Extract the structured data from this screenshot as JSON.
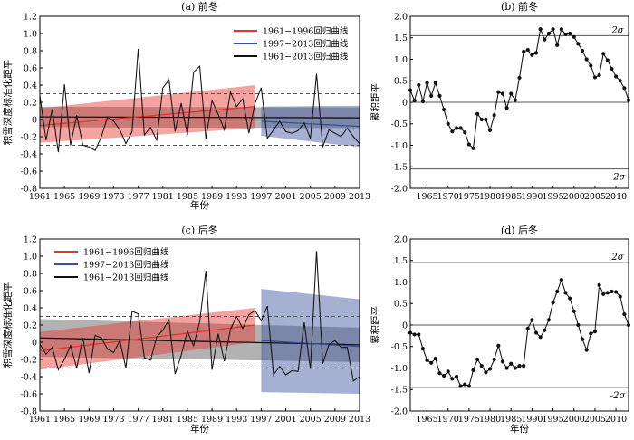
{
  "chart_data": [
    {
      "panel": "(a) 前冬",
      "type": "line",
      "title": "(a) 前冬",
      "xlabel": "年份",
      "ylabel": "积雪深度标准化距平",
      "xlim": [
        1961,
        2013
      ],
      "ylim": [
        -0.8,
        1.2
      ],
      "xticks": [
        "1961",
        "1965",
        "1969",
        "1973",
        "1977",
        "1981",
        "1985",
        "1989",
        "1993",
        "1997",
        "2001",
        "2005",
        "2009",
        "2013"
      ],
      "yticks": [
        "-0.8",
        "-0.6",
        "-0.4",
        "-0.2",
        "0",
        "0.2",
        "0.4",
        "0.6",
        "0.8",
        "1.0",
        "1.2"
      ],
      "dashed_lines": [
        0.3,
        -0.3
      ],
      "legend": [
        {
          "label": "1961−1996回归曲线",
          "color": "#e8322c"
        },
        {
          "label": "1997−2013回归曲线",
          "color": "#3a4f9c"
        },
        {
          "label": "1961−2013回归曲线",
          "color": "#111111"
        }
      ],
      "series": [
        {
          "x": [
            1961,
            1962,
            1963,
            1964,
            1965,
            1966,
            1967,
            1968,
            1969,
            1970,
            1971,
            1972,
            1973,
            1974,
            1975,
            1976,
            1977,
            1978,
            1979,
            1980,
            1981,
            1982,
            1983,
            1984,
            1985,
            1986,
            1987,
            1988,
            1989,
            1990,
            1991,
            1992,
            1993,
            1994,
            1995,
            1996,
            1997,
            1998,
            1999,
            2000,
            2001,
            2002,
            2003,
            2004,
            2005,
            2006,
            2007,
            2008,
            2009,
            2010,
            2011,
            2012,
            2013
          ],
          "values": [
            0.28,
            -0.24,
            0.12,
            -0.38,
            0.41,
            -0.3,
            0.05,
            -0.3,
            -0.32,
            -0.36,
            -0.2,
            0.03,
            -0.02,
            -0.12,
            -0.28,
            -0.14,
            0.82,
            -0.18,
            -0.09,
            -0.24,
            0.37,
            0.46,
            -0.14,
            0.19,
            -0.18,
            0.55,
            0.62,
            -0.22,
            0.22,
            0.06,
            -0.12,
            0.32,
            0.15,
            0.24,
            -0.16,
            0.19,
            0.37,
            -0.22,
            -0.12,
            -0.02,
            -0.14,
            -0.16,
            -0.13,
            -0.04,
            -0.22,
            0.53,
            -0.32,
            -0.12,
            -0.16,
            -0.2,
            -0.1,
            -0.2,
            -0.28
          ]
        }
      ],
      "regressions": [
        {
          "range": [
            1961,
            1996
          ],
          "start": -0.07,
          "end": 0.15,
          "band_start": 0.2,
          "band_end": 0.25,
          "color": "#e8322c"
        },
        {
          "range": [
            1997,
            2013
          ],
          "start": -0.02,
          "end": -0.08,
          "band_start": 0.17,
          "band_end": 0.24,
          "color": "#3a4f9c"
        },
        {
          "range": [
            1961,
            2013
          ],
          "start": 0.03,
          "end": 0.02,
          "band_start": 0.12,
          "band_end": 0.12,
          "color": "#111111"
        }
      ]
    },
    {
      "panel": "(b) 前冬",
      "type": "line",
      "title": "(b) 前冬",
      "xlabel": "",
      "ylabel": "累积距平",
      "xlim": [
        1961,
        2013
      ],
      "ylim": [
        -2.0,
        2.0
      ],
      "xticks": [
        "1965",
        "1970",
        "1975",
        "1980",
        "1985",
        "1990",
        "1995",
        "2000",
        "2005",
        "2010"
      ],
      "yticks": [
        "-2.0",
        "-1.5",
        "-1.0",
        "-0.5",
        "0",
        "0.5",
        "1.0",
        "1.5",
        "2.0"
      ],
      "sigma_lines": [
        {
          "value": 1.55,
          "label": "2σ"
        },
        {
          "value": -1.55,
          "label": "-2σ"
        }
      ],
      "zero_line": true,
      "series": [
        {
          "x": [
            1961,
            1962,
            1963,
            1964,
            1965,
            1966,
            1967,
            1968,
            1969,
            1970,
            1971,
            1972,
            1973,
            1974,
            1975,
            1976,
            1977,
            1978,
            1979,
            1980,
            1981,
            1982,
            1983,
            1984,
            1985,
            1986,
            1987,
            1988,
            1989,
            1990,
            1991,
            1992,
            1993,
            1994,
            1995,
            1996,
            1997,
            1998,
            1999,
            2000,
            2001,
            2002,
            2003,
            2004,
            2005,
            2006,
            2007,
            2008,
            2009,
            2010,
            2011,
            2012,
            2013
          ],
          "values": [
            0.28,
            0.04,
            0.4,
            0.02,
            0.45,
            0.15,
            0.45,
            0.15,
            -0.17,
            -0.5,
            -0.68,
            -0.6,
            -0.6,
            -0.7,
            -0.98,
            -1.07,
            -0.27,
            -0.4,
            -0.4,
            -0.65,
            -0.3,
            0.24,
            0.2,
            -0.13,
            0.2,
            0.05,
            0.57,
            1.18,
            1.22,
            1.1,
            1.15,
            1.7,
            1.46,
            1.6,
            1.7,
            1.33,
            1.7,
            1.58,
            1.6,
            1.52,
            1.36,
            1.2,
            1.0,
            0.85,
            0.58,
            0.63,
            1.13,
            0.98,
            0.78,
            0.6,
            0.5,
            0.33,
            0.05
          ]
        }
      ]
    },
    {
      "panel": "(c) 后冬",
      "type": "line",
      "title": "(c) 后冬",
      "xlabel": "年份",
      "ylabel": "积雪深度标准化距平",
      "xlim": [
        1961,
        2013
      ],
      "ylim": [
        -0.8,
        1.2
      ],
      "xticks": [
        "1961",
        "1965",
        "1969",
        "1973",
        "1977",
        "1981",
        "1985",
        "1989",
        "1993",
        "1997",
        "2001",
        "2005",
        "2009",
        "2013"
      ],
      "yticks": [
        "-0.8",
        "-0.6",
        "-0.4",
        "-0.2",
        "0",
        "0.2",
        "0.4",
        "0.6",
        "0.8",
        "1.0",
        "1.2"
      ],
      "dashed_lines": [
        0.3,
        -0.3
      ],
      "legend": [
        {
          "label": "1961−1996回归曲线",
          "color": "#e8322c"
        },
        {
          "label": "1997−2013回归曲线",
          "color": "#3a4f9c"
        },
        {
          "label": "1961−2013回归曲线",
          "color": "#111111"
        }
      ],
      "series": [
        {
          "x": [
            1961,
            1962,
            1963,
            1964,
            1965,
            1966,
            1967,
            1968,
            1969,
            1970,
            1971,
            1972,
            1973,
            1974,
            1975,
            1976,
            1977,
            1978,
            1979,
            1980,
            1981,
            1982,
            1983,
            1984,
            1985,
            1986,
            1987,
            1988,
            1989,
            1990,
            1991,
            1992,
            1993,
            1994,
            1995,
            1996,
            1997,
            1998,
            1999,
            2000,
            2001,
            2002,
            2003,
            2004,
            2005,
            2006,
            2007,
            2008,
            2009,
            2010,
            2011,
            2012,
            2013
          ],
          "values": [
            -0.02,
            -0.14,
            -0.06,
            -0.32,
            -0.2,
            -0.04,
            -0.3,
            0.05,
            -0.36,
            0.08,
            0.05,
            -0.08,
            -0.12,
            0.02,
            -0.3,
            0.36,
            0.33,
            -0.18,
            -0.21,
            0.06,
            0.14,
            0.26,
            -0.37,
            -0.15,
            0.13,
            -0.04,
            0.24,
            0.83,
            -0.32,
            0.1,
            -0.22,
            0.15,
            0.3,
            0.16,
            0.32,
            0.37,
            0.25,
            0.42,
            -0.38,
            -0.28,
            -0.38,
            -0.33,
            -0.34,
            0.23,
            -0.31,
            1.06,
            -0.25,
            -0.03,
            0.02,
            -0.06,
            -0.06,
            -0.45,
            -0.4
          ]
        }
      ],
      "regressions": [
        {
          "range": [
            1961,
            1996
          ],
          "start": -0.1,
          "end": 0.2,
          "band_start": 0.22,
          "band_end": 0.2,
          "color": "#e8322c"
        },
        {
          "range": [
            1997,
            2013
          ],
          "start": 0.02,
          "end": -0.05,
          "band_start": 0.6,
          "band_end": 0.55,
          "color": "#3a4f9c"
        },
        {
          "range": [
            1961,
            2013
          ],
          "start": 0.05,
          "end": -0.03,
          "band_start": 0.22,
          "band_end": 0.2,
          "color": "#111111"
        }
      ]
    },
    {
      "panel": "(d) 后冬",
      "type": "line",
      "title": "(d) 后冬",
      "xlabel": "年份",
      "ylabel": "累积距平",
      "xlim": [
        1961,
        2013
      ],
      "ylim": [
        -2.0,
        2.0
      ],
      "xticks": [
        "1965",
        "1970",
        "1975",
        "1980",
        "1985",
        "1990",
        "1995",
        "2000",
        "2005",
        "2010"
      ],
      "yticks": [
        "-2.0",
        "-1.5",
        "-1.0",
        "-0.5",
        "0",
        "0.5",
        "1.0",
        "1.5",
        "2.0"
      ],
      "sigma_lines": [
        {
          "value": 1.45,
          "label": "2σ"
        },
        {
          "value": -1.45,
          "label": "-2σ"
        }
      ],
      "zero_line": true,
      "series": [
        {
          "x": [
            1961,
            1962,
            1963,
            1964,
            1965,
            1966,
            1967,
            1968,
            1969,
            1970,
            1971,
            1972,
            1973,
            1974,
            1975,
            1976,
            1977,
            1978,
            1979,
            1980,
            1981,
            1982,
            1983,
            1984,
            1985,
            1986,
            1987,
            1988,
            1989,
            1990,
            1991,
            1992,
            1993,
            1994,
            1995,
            1996,
            1997,
            1998,
            1999,
            2000,
            2001,
            2002,
            2003,
            2004,
            2005,
            2006,
            2007,
            2008,
            2009,
            2010,
            2011,
            2012,
            2013
          ],
          "values": [
            -0.18,
            -0.22,
            -0.22,
            -0.55,
            -0.82,
            -0.88,
            -0.78,
            -1.12,
            -1.18,
            -1.08,
            -1.25,
            -1.2,
            -1.42,
            -1.38,
            -1.42,
            -1.05,
            -0.8,
            -0.95,
            -1.1,
            -1.02,
            -0.8,
            -0.48,
            -0.85,
            -1.0,
            -0.9,
            -1.0,
            -0.95,
            -0.95,
            -0.08,
            0.12,
            -0.18,
            -0.28,
            -0.12,
            0.12,
            0.52,
            0.78,
            1.05,
            0.75,
            0.62,
            0.32,
            0.0,
            -0.33,
            -0.58,
            -0.2,
            -0.15,
            0.93,
            0.72,
            0.75,
            0.78,
            0.77,
            0.66,
            0.25,
            0.0
          ]
        }
      ]
    }
  ]
}
